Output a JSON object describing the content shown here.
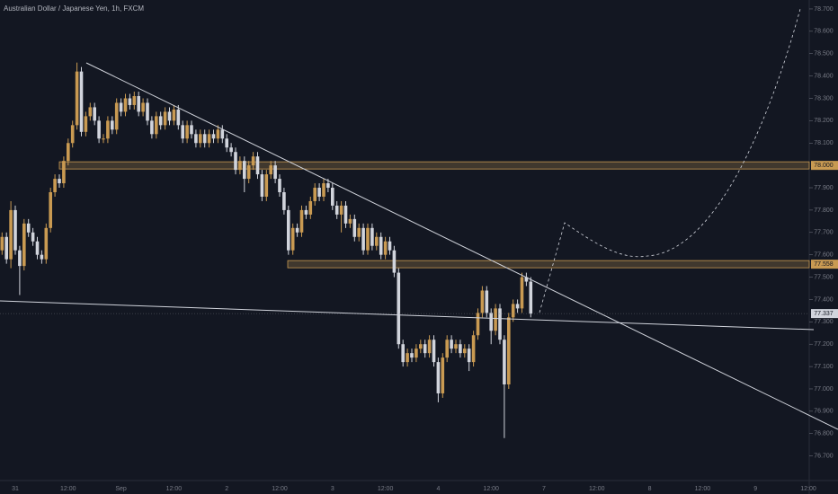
{
  "chart_data": {
    "type": "candlestick",
    "title": "Australian Dollar / Japanese Yen, 1h, FXCM",
    "categories": [
      null,
      null,
      null,
      "31",
      null,
      null,
      null,
      null,
      null,
      null,
      null,
      null,
      null,
      null,
      null,
      "12:00",
      null,
      null,
      null,
      null,
      null,
      null,
      null,
      null,
      null,
      null,
      null,
      "Sep",
      null,
      null,
      null,
      null,
      null,
      null,
      null,
      null,
      null,
      null,
      null,
      "12:00",
      null,
      null,
      null,
      null,
      null,
      null,
      null,
      null,
      null,
      null,
      null,
      "2",
      null,
      null,
      null,
      null,
      null,
      null,
      null,
      null,
      null,
      null,
      null,
      "12:00",
      null,
      null,
      null,
      null,
      null,
      null,
      null,
      null,
      null,
      null,
      null,
      "3",
      null,
      null,
      null,
      null,
      null,
      null,
      null,
      null,
      null,
      null,
      null,
      "12:00",
      null,
      null,
      null,
      null,
      null,
      null,
      null,
      null,
      null,
      null,
      null,
      "4",
      null,
      null,
      null,
      null,
      null,
      null,
      null,
      null,
      null,
      null,
      null,
      "12:00",
      null,
      null,
      null,
      null,
      null,
      null,
      null,
      null,
      null,
      null,
      null,
      "7",
      null,
      null,
      null,
      null,
      null,
      null,
      null,
      null,
      null,
      null,
      null,
      "12:00",
      null,
      null,
      null,
      null,
      null,
      null,
      null,
      null,
      null,
      null,
      null,
      "8",
      null,
      null,
      null,
      null,
      null,
      null,
      null,
      null,
      null,
      null,
      null,
      "12:00",
      null,
      null,
      null,
      null,
      null,
      null,
      null,
      null,
      null,
      null,
      null,
      "9",
      null,
      null,
      null,
      null,
      null,
      null,
      null,
      null,
      null,
      null,
      null,
      "12:00",
      null,
      null,
      null,
      null,
      null,
      null,
      null,
      null
    ],
    "open": [
      77.62,
      77.68,
      77.58,
      77.8,
      77.62,
      77.55,
      77.74,
      77.7,
      77.66,
      77.6,
      77.58,
      77.72,
      77.88,
      77.94,
      77.92,
      78.02,
      78.1,
      78.18,
      78.42,
      78.15,
      78.22,
      78.26,
      78.2,
      78.12,
      78.12,
      78.2,
      78.16,
      78.28,
      78.24,
      78.3,
      78.27,
      78.31,
      78.24,
      78.28,
      78.2,
      78.14,
      78.22,
      78.18,
      78.24,
      78.2,
      78.25,
      78.18,
      78.12,
      78.18,
      78.14,
      78.1,
      78.14,
      78.1,
      78.14,
      78.12,
      78.16,
      78.12,
      78.08,
      78.06,
      77.98,
      78.02,
      77.94,
      78.0,
      78.04,
      77.96,
      77.86,
      77.96,
      78.0,
      77.94,
      77.88,
      77.8,
      77.62,
      77.72,
      77.7,
      77.8,
      77.78,
      77.84,
      77.9,
      77.86,
      77.92,
      77.9,
      77.82,
      77.78,
      77.82,
      77.74,
      77.76,
      77.68,
      77.72,
      77.62,
      77.72,
      77.64,
      77.68,
      77.6,
      77.66,
      77.62,
      77.52,
      77.2,
      77.12,
      77.16,
      77.14,
      77.18,
      77.2,
      77.16,
      77.22,
      77.12,
      76.98,
      77.14,
      77.22,
      77.18,
      77.2,
      77.16,
      77.18,
      77.12,
      77.24,
      77.34,
      77.44,
      77.34,
      77.26,
      77.36,
      77.22,
      77.02,
      77.32,
      77.38,
      77.36,
      77.5,
      77.48,
      null,
      null,
      null,
      null,
      null,
      null,
      null,
      null,
      null,
      null,
      null,
      null,
      null,
      null,
      null,
      null,
      null,
      null,
      null,
      null,
      null,
      null,
      null,
      null,
      null,
      null,
      null,
      null,
      null,
      null,
      null,
      null,
      null,
      null,
      null,
      null,
      null,
      null,
      null,
      null,
      null,
      null,
      null,
      null,
      null,
      null,
      null,
      null,
      null,
      null,
      null,
      null,
      null,
      null,
      null,
      null,
      null,
      null,
      null,
      null,
      null,
      null,
      null,
      null,
      null,
      null,
      null,
      null,
      null,
      null,
      null
    ],
    "high": [
      77.7,
      77.7,
      77.84,
      77.82,
      77.64,
      77.76,
      77.76,
      77.72,
      77.68,
      77.62,
      77.74,
      77.9,
      77.96,
      77.96,
      78.04,
      78.12,
      78.2,
      78.46,
      78.44,
      78.24,
      78.28,
      78.28,
      78.22,
      78.14,
      78.22,
      78.22,
      78.3,
      78.3,
      78.32,
      78.32,
      78.33,
      78.33,
      78.3,
      78.3,
      78.22,
      78.24,
      78.24,
      78.26,
      78.26,
      78.27,
      78.27,
      78.2,
      78.2,
      78.2,
      78.16,
      78.16,
      78.16,
      78.16,
      78.16,
      78.18,
      78.18,
      78.14,
      78.1,
      78.08,
      78.04,
      78.04,
      78.02,
      78.06,
      78.06,
      77.98,
      77.98,
      78.02,
      78.02,
      77.96,
      77.9,
      77.82,
      77.74,
      77.74,
      77.82,
      77.82,
      77.86,
      77.92,
      77.92,
      77.94,
      77.94,
      77.92,
      77.84,
      77.84,
      77.84,
      77.78,
      77.78,
      77.74,
      77.74,
      77.74,
      77.74,
      77.7,
      77.7,
      77.68,
      77.68,
      77.64,
      77.54,
      77.22,
      77.18,
      77.18,
      77.2,
      77.22,
      77.22,
      77.24,
      77.24,
      77.14,
      77.16,
      77.24,
      77.24,
      77.22,
      77.22,
      77.2,
      77.2,
      77.26,
      77.36,
      77.46,
      77.46,
      77.36,
      77.38,
      77.38,
      77.24,
      77.34,
      77.4,
      77.4,
      77.52,
      77.52,
      77.5,
      null,
      null,
      null,
      null,
      null,
      null,
      null,
      null,
      null,
      null,
      null,
      null,
      null,
      null,
      null,
      null,
      null,
      null,
      null,
      null,
      null,
      null,
      null,
      null,
      null,
      null,
      null,
      null,
      null,
      null,
      null,
      null,
      null,
      null,
      null,
      null,
      null,
      null,
      null,
      null,
      null,
      null,
      null,
      null,
      null,
      null,
      null,
      null,
      null,
      null,
      null,
      null,
      null,
      null,
      null,
      null,
      null,
      null,
      null,
      null,
      null,
      null,
      null,
      null,
      null,
      null,
      null,
      null,
      null,
      null,
      null
    ],
    "low": [
      77.6,
      77.56,
      77.54,
      77.6,
      77.42,
      77.53,
      77.68,
      77.64,
      77.58,
      77.56,
      77.56,
      77.7,
      77.86,
      77.9,
      77.9,
      78.0,
      78.08,
      78.16,
      78.13,
      78.13,
      78.2,
      78.18,
      78.1,
      78.1,
      78.1,
      78.14,
      78.14,
      78.22,
      78.22,
      78.25,
      78.25,
      78.22,
      78.22,
      78.18,
      78.12,
      78.12,
      78.16,
      78.16,
      78.18,
      78.18,
      78.16,
      78.1,
      78.1,
      78.12,
      78.08,
      78.08,
      78.08,
      78.08,
      78.1,
      78.1,
      78.1,
      78.06,
      78.04,
      77.96,
      77.96,
      77.88,
      77.92,
      77.98,
      77.94,
      77.84,
      77.84,
      77.94,
      77.92,
      77.86,
      77.78,
      77.6,
      77.6,
      77.68,
      77.68,
      77.76,
      77.76,
      77.82,
      77.84,
      77.84,
      77.88,
      77.8,
      77.76,
      77.7,
      77.72,
      77.72,
      77.66,
      77.66,
      77.6,
      77.6,
      77.62,
      77.62,
      77.58,
      77.58,
      77.6,
      77.5,
      77.18,
      77.1,
      77.1,
      77.12,
      77.12,
      77.16,
      77.14,
      77.14,
      77.1,
      76.94,
      76.96,
      77.12,
      77.16,
      77.16,
      77.14,
      77.14,
      77.08,
      77.1,
      77.22,
      77.32,
      77.32,
      77.2,
      77.24,
      77.2,
      76.78,
      77.0,
      77.3,
      77.34,
      77.34,
      77.46,
      77.32,
      null,
      null,
      null,
      null,
      null,
      null,
      null,
      null,
      null,
      null,
      null,
      null,
      null,
      null,
      null,
      null,
      null,
      null,
      null,
      null,
      null,
      null,
      null,
      null,
      null,
      null,
      null,
      null,
      null,
      null,
      null,
      null,
      null,
      null,
      null,
      null,
      null,
      null,
      null,
      null,
      null,
      null,
      null,
      null,
      null,
      null,
      null,
      null,
      null,
      null,
      null,
      null,
      null,
      null,
      null,
      null,
      null,
      null,
      null,
      null,
      null,
      null,
      null,
      null,
      null,
      null,
      null,
      null,
      null,
      null,
      null
    ],
    "close": [
      77.68,
      77.58,
      77.8,
      77.62,
      77.55,
      77.74,
      77.7,
      77.66,
      77.6,
      77.58,
      77.72,
      77.88,
      77.94,
      77.92,
      78.02,
      78.1,
      78.18,
      78.42,
      78.15,
      78.22,
      78.26,
      78.2,
      78.12,
      78.12,
      78.2,
      78.16,
      78.28,
      78.24,
      78.3,
      78.27,
      78.31,
      78.24,
      78.28,
      78.2,
      78.14,
      78.22,
      78.18,
      78.24,
      78.2,
      78.25,
      78.18,
      78.12,
      78.18,
      78.14,
      78.1,
      78.14,
      78.1,
      78.14,
      78.12,
      78.16,
      78.12,
      78.08,
      78.06,
      77.98,
      78.02,
      77.94,
      78.0,
      78.04,
      77.96,
      77.86,
      77.96,
      78.0,
      77.94,
      77.88,
      77.8,
      77.62,
      77.72,
      77.7,
      77.8,
      77.78,
      77.84,
      77.9,
      77.86,
      77.92,
      77.9,
      77.82,
      77.78,
      77.82,
      77.74,
      77.76,
      77.68,
      77.72,
      77.62,
      77.72,
      77.64,
      77.68,
      77.6,
      77.66,
      77.62,
      77.52,
      77.2,
      77.12,
      77.16,
      77.14,
      77.18,
      77.2,
      77.16,
      77.22,
      77.12,
      76.98,
      77.14,
      77.22,
      77.18,
      77.2,
      77.16,
      77.18,
      77.12,
      77.24,
      77.34,
      77.44,
      77.34,
      77.26,
      77.36,
      77.22,
      77.02,
      77.32,
      77.38,
      77.36,
      77.5,
      77.48,
      77.337,
      null,
      null,
      null,
      null,
      null,
      null,
      null,
      null,
      null,
      null,
      null,
      null,
      null,
      null,
      null,
      null,
      null,
      null,
      null,
      null,
      null,
      null,
      null,
      null,
      null,
      null,
      null,
      null,
      null,
      null,
      null,
      null,
      null,
      null,
      null,
      null,
      null,
      null,
      null,
      null,
      null,
      null,
      null,
      null,
      null,
      null,
      null,
      null,
      null,
      null,
      null,
      null,
      null,
      null,
      null,
      null,
      null,
      null,
      null,
      null,
      null,
      null,
      null,
      null,
      null,
      null,
      null,
      null,
      null,
      null,
      null
    ],
    "colors": {
      "up": "#c99a52",
      "down": "#d1d4dc"
    },
    "ylim": [
      76.59,
      78.74
    ],
    "yticks": [
      {
        "value": 76.7,
        "label": "76.700"
      },
      {
        "value": 76.8,
        "label": "76.800"
      },
      {
        "value": 76.9,
        "label": "76.900"
      },
      {
        "value": 77.0,
        "label": "77.000"
      },
      {
        "value": 77.1,
        "label": "77.100"
      },
      {
        "value": 77.2,
        "label": "77.200"
      },
      {
        "value": 77.3,
        "label": "77.300"
      },
      {
        "value": 77.4,
        "label": "77.400"
      },
      {
        "value": 77.5,
        "label": "77.500"
      },
      {
        "value": 77.6,
        "label": "77.600"
      },
      {
        "value": 77.7,
        "label": "77.700"
      },
      {
        "value": 77.8,
        "label": "77.800"
      },
      {
        "value": 77.9,
        "label": "77.900"
      },
      {
        "value": 78.1,
        "label": "78.100"
      },
      {
        "value": 78.2,
        "label": "78.200"
      },
      {
        "value": 78.3,
        "label": "78.300"
      },
      {
        "value": 78.4,
        "label": "78.400"
      },
      {
        "value": 78.5,
        "label": "78.500"
      },
      {
        "value": 78.6,
        "label": "78.600"
      },
      {
        "value": 78.7,
        "label": "78.700"
      }
    ],
    "levels": [
      {
        "value": 78.0,
        "label": "78.000"
      },
      {
        "value": 77.558,
        "label": "77.558"
      }
    ],
    "last_price": {
      "value": 77.337,
      "label": "77.337"
    }
  }
}
